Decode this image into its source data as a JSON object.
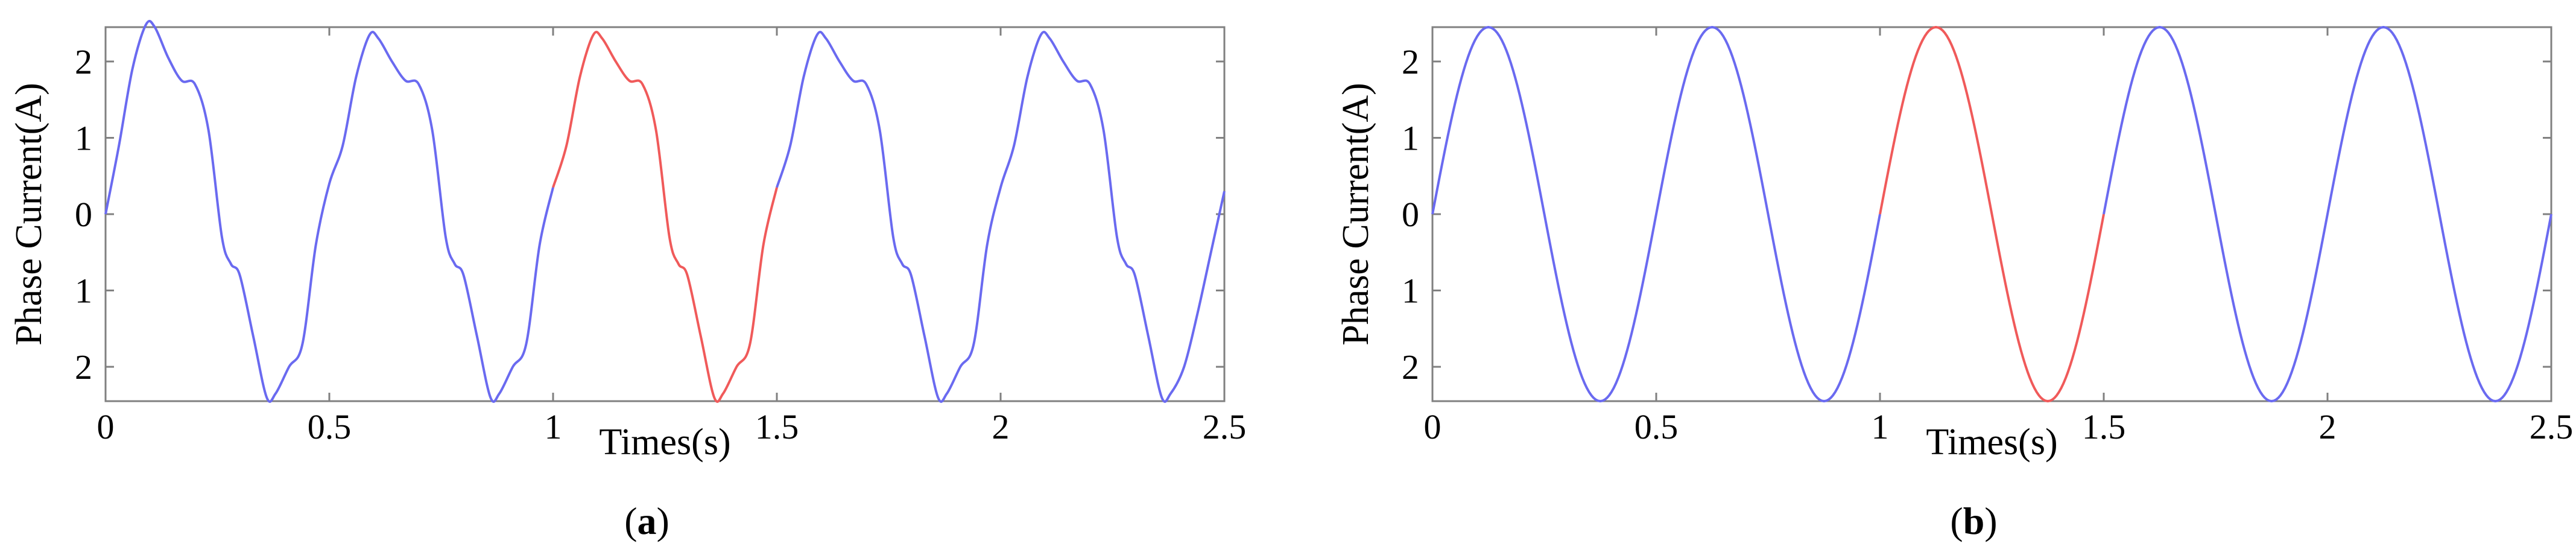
{
  "chart_data": [
    {
      "type": "line",
      "caption_prefix": "(",
      "caption_letter": "a",
      "caption_suffix": ")",
      "xlabel": "Times(s)",
      "ylabel": "Phase Current(A)",
      "xlim": [
        0,
        2.5
      ],
      "ylim": [
        -2.45,
        2.45
      ],
      "xticks": [
        0,
        0.5,
        1,
        1.5,
        2,
        2.5
      ],
      "xtick_labels": [
        "0",
        "0.5",
        "1",
        "1.5",
        "2",
        "2.5"
      ],
      "yticks": [
        2,
        1,
        0,
        -1,
        -2
      ],
      "ytick_labels": [
        "2",
        "1",
        "0",
        "1",
        "2"
      ],
      "grid": false,
      "waveform": "distorted",
      "colors": {
        "blue": "#6a6af0",
        "red": "#f05a5a"
      },
      "highlight_range": [
        1.0,
        1.5
      ],
      "series": [
        {
          "color": "#6a6af0",
          "points": [
            [
              0,
              0
            ],
            [
              0.03,
              0.9
            ],
            [
              0.06,
              1.9
            ],
            [
              0.09,
              2.48
            ],
            [
              0.11,
              2.45
            ],
            [
              0.14,
              2.05
            ],
            [
              0.17,
              1.75
            ],
            [
              0.2,
              1.7
            ],
            [
              0.23,
              1.1
            ],
            [
              0.26,
              -0.3
            ],
            [
              0.28,
              -0.65
            ],
            [
              0.3,
              -0.8
            ],
            [
              0.33,
              -1.6
            ],
            [
              0.36,
              -2.4
            ],
            [
              0.38,
              -2.35
            ],
            [
              0.41,
              -2.0
            ],
            [
              0.44,
              -1.7
            ],
            [
              0.47,
              -0.4
            ],
            [
              0.5,
              0.4
            ],
            [
              0.53,
              0.9
            ],
            [
              0.56,
              1.8
            ],
            [
              0.59,
              2.35
            ],
            [
              0.61,
              2.3
            ],
            [
              0.64,
              2.0
            ],
            [
              0.67,
              1.75
            ],
            [
              0.7,
              1.7
            ],
            [
              0.73,
              1.1
            ],
            [
              0.76,
              -0.3
            ],
            [
              0.78,
              -0.65
            ],
            [
              0.8,
              -0.8
            ],
            [
              0.83,
              -1.6
            ],
            [
              0.86,
              -2.4
            ],
            [
              0.88,
              -2.35
            ],
            [
              0.91,
              -2.0
            ],
            [
              0.94,
              -1.7
            ],
            [
              0.97,
              -0.4
            ],
            [
              1.0,
              0.35
            ]
          ]
        },
        {
          "color": "#f05a5a",
          "points": [
            [
              1.0,
              0.35
            ],
            [
              1.03,
              0.9
            ],
            [
              1.06,
              1.8
            ],
            [
              1.09,
              2.35
            ],
            [
              1.11,
              2.3
            ],
            [
              1.14,
              2.0
            ],
            [
              1.17,
              1.75
            ],
            [
              1.2,
              1.7
            ],
            [
              1.23,
              1.1
            ],
            [
              1.26,
              -0.3
            ],
            [
              1.28,
              -0.65
            ],
            [
              1.3,
              -0.8
            ],
            [
              1.33,
              -1.6
            ],
            [
              1.36,
              -2.4
            ],
            [
              1.38,
              -2.35
            ],
            [
              1.41,
              -2.0
            ],
            [
              1.44,
              -1.7
            ],
            [
              1.47,
              -0.4
            ],
            [
              1.5,
              0.35
            ]
          ]
        },
        {
          "color": "#6a6af0",
          "points": [
            [
              1.5,
              0.35
            ],
            [
              1.53,
              0.9
            ],
            [
              1.56,
              1.8
            ],
            [
              1.59,
              2.35
            ],
            [
              1.61,
              2.3
            ],
            [
              1.64,
              2.0
            ],
            [
              1.67,
              1.75
            ],
            [
              1.7,
              1.7
            ],
            [
              1.73,
              1.1
            ],
            [
              1.76,
              -0.3
            ],
            [
              1.78,
              -0.65
            ],
            [
              1.8,
              -0.8
            ],
            [
              1.83,
              -1.6
            ],
            [
              1.86,
              -2.4
            ],
            [
              1.88,
              -2.35
            ],
            [
              1.91,
              -2.0
            ],
            [
              1.94,
              -1.7
            ],
            [
              1.97,
              -0.4
            ],
            [
              2.0,
              0.35
            ],
            [
              2.03,
              0.9
            ],
            [
              2.06,
              1.8
            ],
            [
              2.09,
              2.35
            ],
            [
              2.11,
              2.3
            ],
            [
              2.14,
              2.0
            ],
            [
              2.17,
              1.75
            ],
            [
              2.2,
              1.7
            ],
            [
              2.23,
              1.1
            ],
            [
              2.26,
              -0.3
            ],
            [
              2.28,
              -0.65
            ],
            [
              2.3,
              -0.8
            ],
            [
              2.33,
              -1.6
            ],
            [
              2.36,
              -2.4
            ],
            [
              2.38,
              -2.35
            ],
            [
              2.41,
              -2.0
            ],
            [
              2.44,
              -1.3
            ],
            [
              2.47,
              -0.5
            ],
            [
              2.5,
              0.3
            ]
          ]
        }
      ]
    },
    {
      "type": "line",
      "caption_prefix": "(",
      "caption_letter": "b",
      "caption_suffix": ")",
      "xlabel": "Times(s)",
      "ylabel": "Phase Current(A)",
      "xlim": [
        0,
        2.5
      ],
      "ylim": [
        -2.45,
        2.45
      ],
      "xticks": [
        0,
        0.5,
        1,
        1.5,
        2,
        2.5
      ],
      "xtick_labels": [
        "0",
        "0.5",
        "1",
        "1.5",
        "2",
        "2.5"
      ],
      "yticks": [
        2,
        1,
        0,
        -1,
        -2
      ],
      "ytick_labels": [
        "2",
        "1",
        "0",
        "1",
        "2"
      ],
      "grid": false,
      "waveform": "sinusoidal",
      "amplitude": 2.45,
      "frequency_hz": 2,
      "colors": {
        "blue": "#6a6af0",
        "red": "#f05a5a"
      },
      "highlight_range": [
        1.0,
        1.5
      ]
    }
  ]
}
